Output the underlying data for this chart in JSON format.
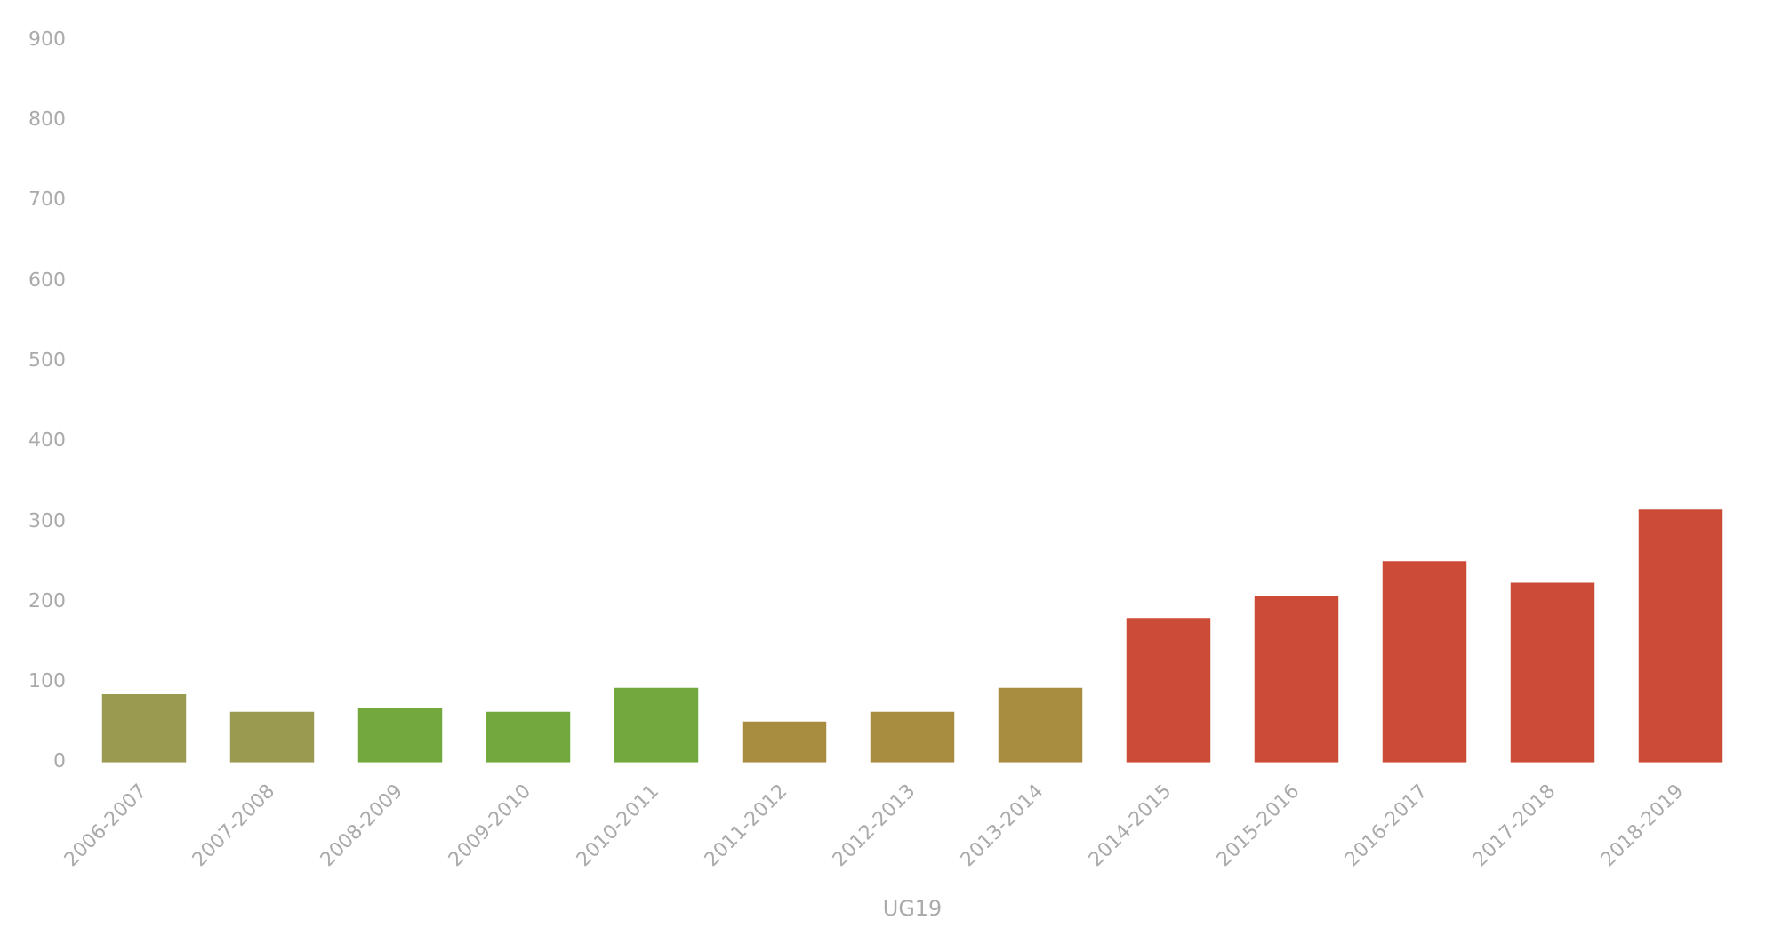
{
  "chart_data": {
    "type": "bar",
    "xlabel": "UG19",
    "categories": [
      "2006-2007",
      "2007-2008",
      "2008-2009",
      "2009-2010",
      "2010-2011",
      "2011-2012",
      "2012-2013",
      "2013-2014",
      "2014-2015",
      "2015-2016",
      "2016-2017",
      "2017-2018",
      "2018-2019"
    ],
    "values": [
      85,
      63,
      68,
      63,
      93,
      51,
      63,
      93,
      180,
      207,
      251,
      224,
      315
    ],
    "colors": [
      "#9a9a50",
      "#9a9a50",
      "#72a83e",
      "#72a83e",
      "#72a83e",
      "#a88c40",
      "#a88c40",
      "#a88c40",
      "#cc4b37",
      "#cc4b37",
      "#cc4b37",
      "#cc4b37",
      "#cc4b37"
    ],
    "ylim": [
      0,
      900
    ],
    "yticks": [
      0,
      100,
      200,
      300,
      400,
      500,
      600,
      700,
      800,
      900
    ],
    "grid": false,
    "legend": false
  }
}
